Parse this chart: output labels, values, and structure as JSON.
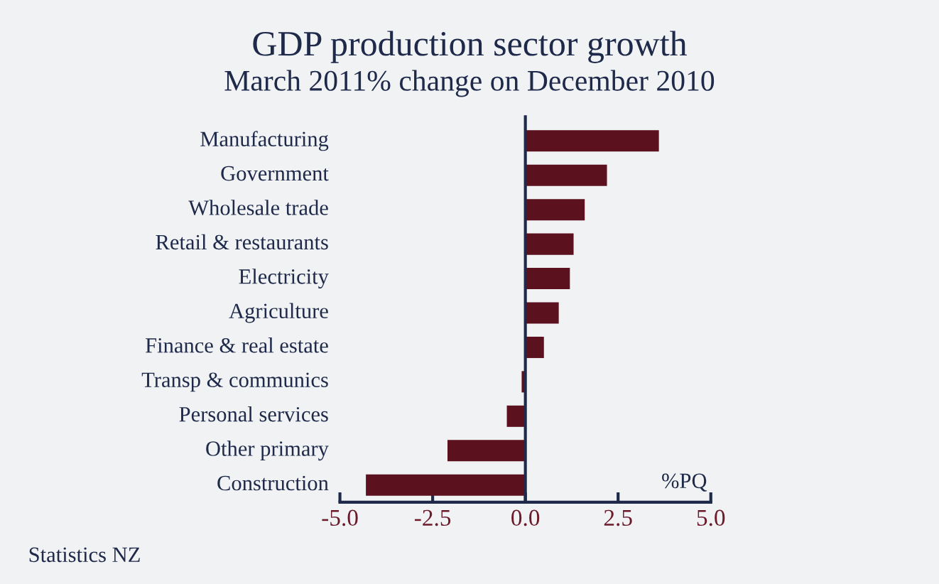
{
  "chart_data": {
    "type": "bar",
    "orientation": "horizontal",
    "title": "GDP production sector growth",
    "subtitle": "March 2011% change on December 2010",
    "categories": [
      "Manufacturing",
      "Government",
      "Wholesale trade",
      "Retail & restaurants",
      "Electricity",
      "Agriculture",
      "Finance & real estate",
      "Transp & communics",
      "Personal services",
      "Other primary",
      "Construction"
    ],
    "values": [
      3.6,
      2.2,
      1.6,
      1.3,
      1.2,
      0.9,
      0.5,
      -0.1,
      -0.5,
      -2.1,
      -4.3
    ],
    "color": "#5c111f",
    "xlim": [
      -5,
      5
    ],
    "xticks": [
      {
        "value": -5,
        "label": "-5.0"
      },
      {
        "value": -2.5,
        "label": "-2.5"
      },
      {
        "value": 0,
        "label": "0.0"
      },
      {
        "value": 2.5,
        "label": "2.5"
      },
      {
        "value": 5,
        "label": "5.0"
      }
    ],
    "grid": false,
    "legend": false,
    "annotations": [
      "%PQ",
      "Statistics NZ"
    ]
  }
}
